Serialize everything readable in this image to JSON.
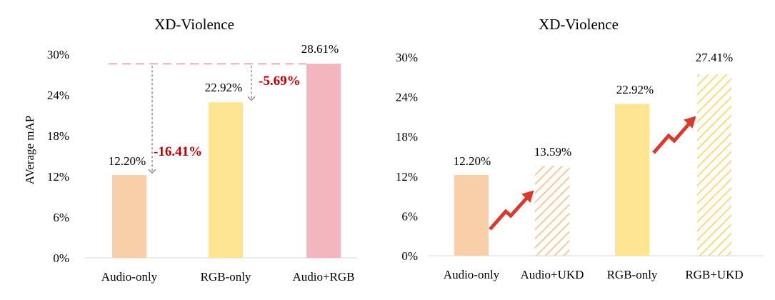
{
  "chart_data": [
    {
      "type": "bar",
      "title": "XD-Violence",
      "ylabel": "AVerage mAP",
      "categories": [
        "Audio-only",
        "RGB-only",
        "Audio+RGB"
      ],
      "values": [
        12.2,
        22.92,
        28.61
      ],
      "value_labels": [
        "12.20%",
        "22.92%",
        "28.61%"
      ],
      "bar_colors": [
        "#f8cfa8",
        "#fde591",
        "#f3b6c0"
      ],
      "ylim": [
        0,
        30
      ],
      "yticks": [
        0,
        6,
        12,
        18,
        24,
        30
      ],
      "ytick_labels": [
        "0%",
        "6%",
        "12%",
        "18%",
        "24%",
        "30%"
      ],
      "reference_line": {
        "value": 28.61,
        "style": "dashed",
        "color": "#f5b8c4"
      },
      "annotations": [
        {
          "text": "-16.41%",
          "color": "#c00000",
          "from": 28.61,
          "to": 12.2,
          "category": "Audio-only"
        },
        {
          "text": "-5.69%",
          "color": "#c00000",
          "from": 28.61,
          "to": 22.92,
          "category": "RGB-only"
        }
      ]
    },
    {
      "type": "bar",
      "title": "XD-Violence",
      "categories": [
        "Audio-only",
        "Audio+UKD",
        "RGB-only",
        "RGB+UKD"
      ],
      "values": [
        12.2,
        13.59,
        22.92,
        27.41
      ],
      "value_labels": [
        "12.20%",
        "13.59%",
        "22.92%",
        "27.41%"
      ],
      "bar_colors": [
        "#f8cfa8",
        "#f8cfa8",
        "#fde591",
        "#fde591"
      ],
      "bar_patterns": [
        "solid",
        "hatched",
        "solid",
        "hatched"
      ],
      "ylim": [
        0,
        30
      ],
      "yticks": [
        0,
        6,
        12,
        18,
        24,
        30
      ],
      "ytick_labels": [
        "0%",
        "6%",
        "12%",
        "18%",
        "24%",
        "30%"
      ],
      "arrows": [
        {
          "from_category": "Audio-only",
          "to_category": "Audio+UKD",
          "color": "#d93a2b"
        },
        {
          "from_category": "RGB-only",
          "to_category": "RGB+UKD",
          "color": "#d93a2b"
        }
      ]
    }
  ]
}
